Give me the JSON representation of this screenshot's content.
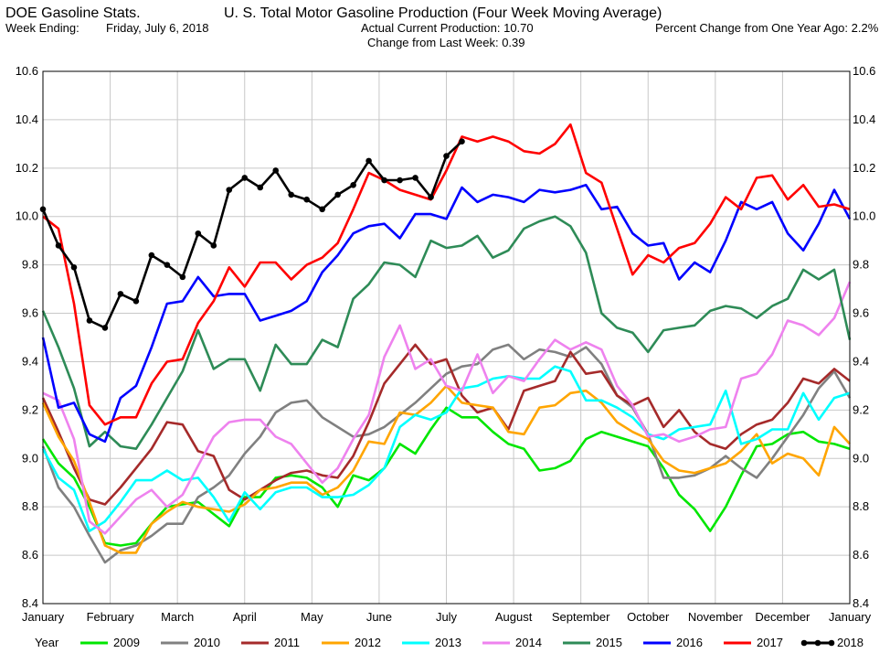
{
  "header": {
    "app_title": "DOE Gasoline Stats.",
    "chart_title": "U. S. Total Motor Gasoline Production (Four Week Moving Average)",
    "week_ending_label": "Week Ending:",
    "week_ending_value": "Friday, July 6, 2018",
    "current_production_label": "Actual Current Production:",
    "current_production_value": "10.70",
    "change_week_label": "Change from Last Week:",
    "change_week_value": "0.39",
    "pct_change_label": "Percent Change from One Year Ago:",
    "pct_change_value": "2.2%"
  },
  "chart_data": {
    "type": "line",
    "title": "U. S. Total Motor Gasoline Production (Four Week Moving Average)",
    "xlabel": "",
    "ylabel": "",
    "x_unit": "week of year",
    "xlim": [
      1,
      53
    ],
    "ylim": [
      8.4,
      10.6
    ],
    "y_ticks": [
      "8.4",
      "8.6",
      "8.8",
      "9.0",
      "9.2",
      "9.4",
      "9.6",
      "9.8",
      "10.0",
      "10.2",
      "10.4",
      "10.6"
    ],
    "month_ticks": [
      "January",
      "February",
      "March",
      "April",
      "May",
      "June",
      "July",
      "August",
      "September",
      "October",
      "November",
      "December",
      "January"
    ],
    "grid": true,
    "legend_position": "bottom",
    "legend_title": "Year",
    "series": [
      {
        "name": "2009",
        "color": "#00e600",
        "marker": false,
        "values": [
          9.08,
          8.98,
          8.92,
          8.8,
          8.65,
          8.64,
          8.65,
          8.73,
          8.8,
          8.81,
          8.82,
          8.77,
          8.72,
          8.84,
          8.84,
          8.92,
          8.93,
          8.92,
          8.88,
          8.8,
          8.93,
          8.91,
          8.96,
          9.06,
          9.02,
          9.12,
          9.21,
          9.17,
          9.17,
          9.11,
          9.06,
          9.04,
          8.95,
          8.96,
          8.99,
          9.08,
          9.11,
          9.09,
          9.07,
          9.05,
          8.96,
          8.85,
          8.79,
          8.7,
          8.8,
          8.93,
          9.05,
          9.06,
          9.1,
          9.11,
          9.07,
          9.06,
          9.04
        ]
      },
      {
        "name": "2010",
        "color": "#808080",
        "marker": false,
        "values": [
          9.05,
          8.88,
          8.8,
          8.68,
          8.57,
          8.62,
          8.64,
          8.68,
          8.73,
          8.73,
          8.84,
          8.88,
          8.93,
          9.02,
          9.09,
          9.19,
          9.23,
          9.24,
          9.17,
          9.13,
          9.09,
          9.1,
          9.13,
          9.18,
          9.23,
          9.29,
          9.35,
          9.38,
          9.39,
          9.45,
          9.47,
          9.41,
          9.45,
          9.44,
          9.42,
          9.46,
          9.39,
          9.26,
          9.21,
          9.1,
          8.92,
          8.92,
          8.93,
          8.96,
          9.01,
          8.96,
          8.92,
          9.0,
          9.09,
          9.18,
          9.29,
          9.36,
          9.25
        ]
      },
      {
        "name": "2011",
        "color": "#a52a2a",
        "marker": false,
        "values": [
          9.25,
          9.11,
          8.96,
          8.83,
          8.81,
          8.88,
          8.96,
          9.04,
          9.15,
          9.14,
          9.03,
          9.01,
          8.87,
          8.83,
          8.87,
          8.91,
          8.94,
          8.95,
          8.93,
          8.92,
          9.01,
          9.15,
          9.31,
          9.39,
          9.47,
          9.39,
          9.41,
          9.26,
          9.19,
          9.21,
          9.12,
          9.28,
          9.3,
          9.32,
          9.44,
          9.35,
          9.36,
          9.26,
          9.22,
          9.25,
          9.13,
          9.2,
          9.11,
          9.06,
          9.04,
          9.1,
          9.14,
          9.16,
          9.23,
          9.33,
          9.31,
          9.37,
          9.32
        ]
      },
      {
        "name": "2012",
        "color": "#ffa500",
        "marker": false,
        "values": [
          9.23,
          9.09,
          8.99,
          8.82,
          8.64,
          8.61,
          8.61,
          8.73,
          8.78,
          8.82,
          8.8,
          8.79,
          8.78,
          8.81,
          8.87,
          8.88,
          8.9,
          8.9,
          8.85,
          8.88,
          8.95,
          9.07,
          9.06,
          9.19,
          9.18,
          9.23,
          9.3,
          9.23,
          9.22,
          9.21,
          9.11,
          9.1,
          9.21,
          9.22,
          9.27,
          9.28,
          9.23,
          9.15,
          9.11,
          9.08,
          8.99,
          8.95,
          8.94,
          8.96,
          8.98,
          9.03,
          9.1,
          8.98,
          9.02,
          9.0,
          8.93,
          9.13,
          9.06
        ]
      },
      {
        "name": "2013",
        "color": "#00ffff",
        "marker": false,
        "values": [
          9.04,
          8.92,
          8.87,
          8.7,
          8.74,
          8.82,
          8.91,
          8.91,
          8.95,
          8.91,
          8.92,
          8.84,
          8.74,
          8.86,
          8.79,
          8.86,
          8.88,
          8.88,
          8.84,
          8.84,
          8.85,
          8.89,
          8.96,
          9.13,
          9.18,
          9.16,
          9.19,
          9.29,
          9.3,
          9.33,
          9.34,
          9.33,
          9.33,
          9.38,
          9.36,
          9.24,
          9.24,
          9.21,
          9.17,
          9.1,
          9.08,
          9.12,
          9.13,
          9.14,
          9.28,
          9.06,
          9.08,
          9.12,
          9.12,
          9.27,
          9.16,
          9.25,
          9.27
        ]
      },
      {
        "name": "2014",
        "color": "#ee82ee",
        "marker": false,
        "values": [
          9.27,
          9.24,
          9.08,
          8.74,
          8.69,
          8.76,
          8.83,
          8.87,
          8.8,
          8.85,
          8.97,
          9.09,
          9.15,
          9.16,
          9.16,
          9.09,
          9.06,
          8.98,
          8.9,
          8.96,
          9.08,
          9.18,
          9.42,
          9.55,
          9.37,
          9.41,
          9.3,
          9.28,
          9.43,
          9.27,
          9.34,
          9.32,
          9.41,
          9.49,
          9.45,
          9.48,
          9.45,
          9.3,
          9.22,
          9.09,
          9.1,
          9.07,
          9.09,
          9.12,
          9.13,
          9.33,
          9.35,
          9.43,
          9.57,
          9.55,
          9.51,
          9.58,
          9.73
        ]
      },
      {
        "name": "2015",
        "color": "#2e8b57",
        "marker": false,
        "values": [
          9.61,
          9.46,
          9.29,
          9.05,
          9.11,
          9.05,
          9.04,
          9.14,
          9.25,
          9.36,
          9.53,
          9.37,
          9.41,
          9.41,
          9.28,
          9.47,
          9.39,
          9.39,
          9.49,
          9.46,
          9.66,
          9.72,
          9.81,
          9.8,
          9.75,
          9.9,
          9.87,
          9.88,
          9.92,
          9.83,
          9.86,
          9.95,
          9.98,
          10.0,
          9.96,
          9.85,
          9.6,
          9.54,
          9.52,
          9.44,
          9.53,
          9.54,
          9.55,
          9.61,
          9.63,
          9.62,
          9.58,
          9.63,
          9.66,
          9.78,
          9.74,
          9.78,
          9.49
        ]
      },
      {
        "name": "2016",
        "color": "#0000ff",
        "marker": false,
        "values": [
          9.5,
          9.21,
          9.23,
          9.1,
          9.07,
          9.25,
          9.3,
          9.46,
          9.64,
          9.65,
          9.75,
          9.67,
          9.68,
          9.68,
          9.57,
          9.59,
          9.61,
          9.65,
          9.77,
          9.84,
          9.93,
          9.96,
          9.97,
          9.91,
          10.01,
          10.01,
          9.99,
          10.12,
          10.06,
          10.09,
          10.08,
          10.06,
          10.11,
          10.1,
          10.11,
          10.13,
          10.03,
          10.04,
          9.93,
          9.88,
          9.89,
          9.74,
          9.81,
          9.77,
          9.9,
          10.06,
          10.03,
          10.06,
          9.93,
          9.86,
          9.97,
          10.11,
          9.99
        ]
      },
      {
        "name": "2017",
        "color": "#ff0000",
        "marker": false,
        "values": [
          10.0,
          9.95,
          9.64,
          9.22,
          9.14,
          9.17,
          9.17,
          9.31,
          9.4,
          9.41,
          9.56,
          9.65,
          9.79,
          9.71,
          9.81,
          9.81,
          9.74,
          9.8,
          9.83,
          9.89,
          10.03,
          10.18,
          10.15,
          10.11,
          10.09,
          10.07,
          10.19,
          10.33,
          10.31,
          10.33,
          10.31,
          10.27,
          10.26,
          10.3,
          10.38,
          10.18,
          10.14,
          9.95,
          9.76,
          9.84,
          9.81,
          9.87,
          9.89,
          9.97,
          10.08,
          10.03,
          10.16,
          10.17,
          10.07,
          10.13,
          10.04,
          10.05,
          10.03
        ]
      },
      {
        "name": "2018",
        "color": "#000000",
        "marker": true,
        "values": [
          10.03,
          9.88,
          9.79,
          9.57,
          9.54,
          9.68,
          9.65,
          9.84,
          9.8,
          9.75,
          9.93,
          9.88,
          10.11,
          10.16,
          10.12,
          10.19,
          10.09,
          10.07,
          10.03,
          10.09,
          10.13,
          10.23,
          10.15,
          10.15,
          10.16,
          10.08,
          10.25,
          10.31
        ]
      }
    ]
  }
}
